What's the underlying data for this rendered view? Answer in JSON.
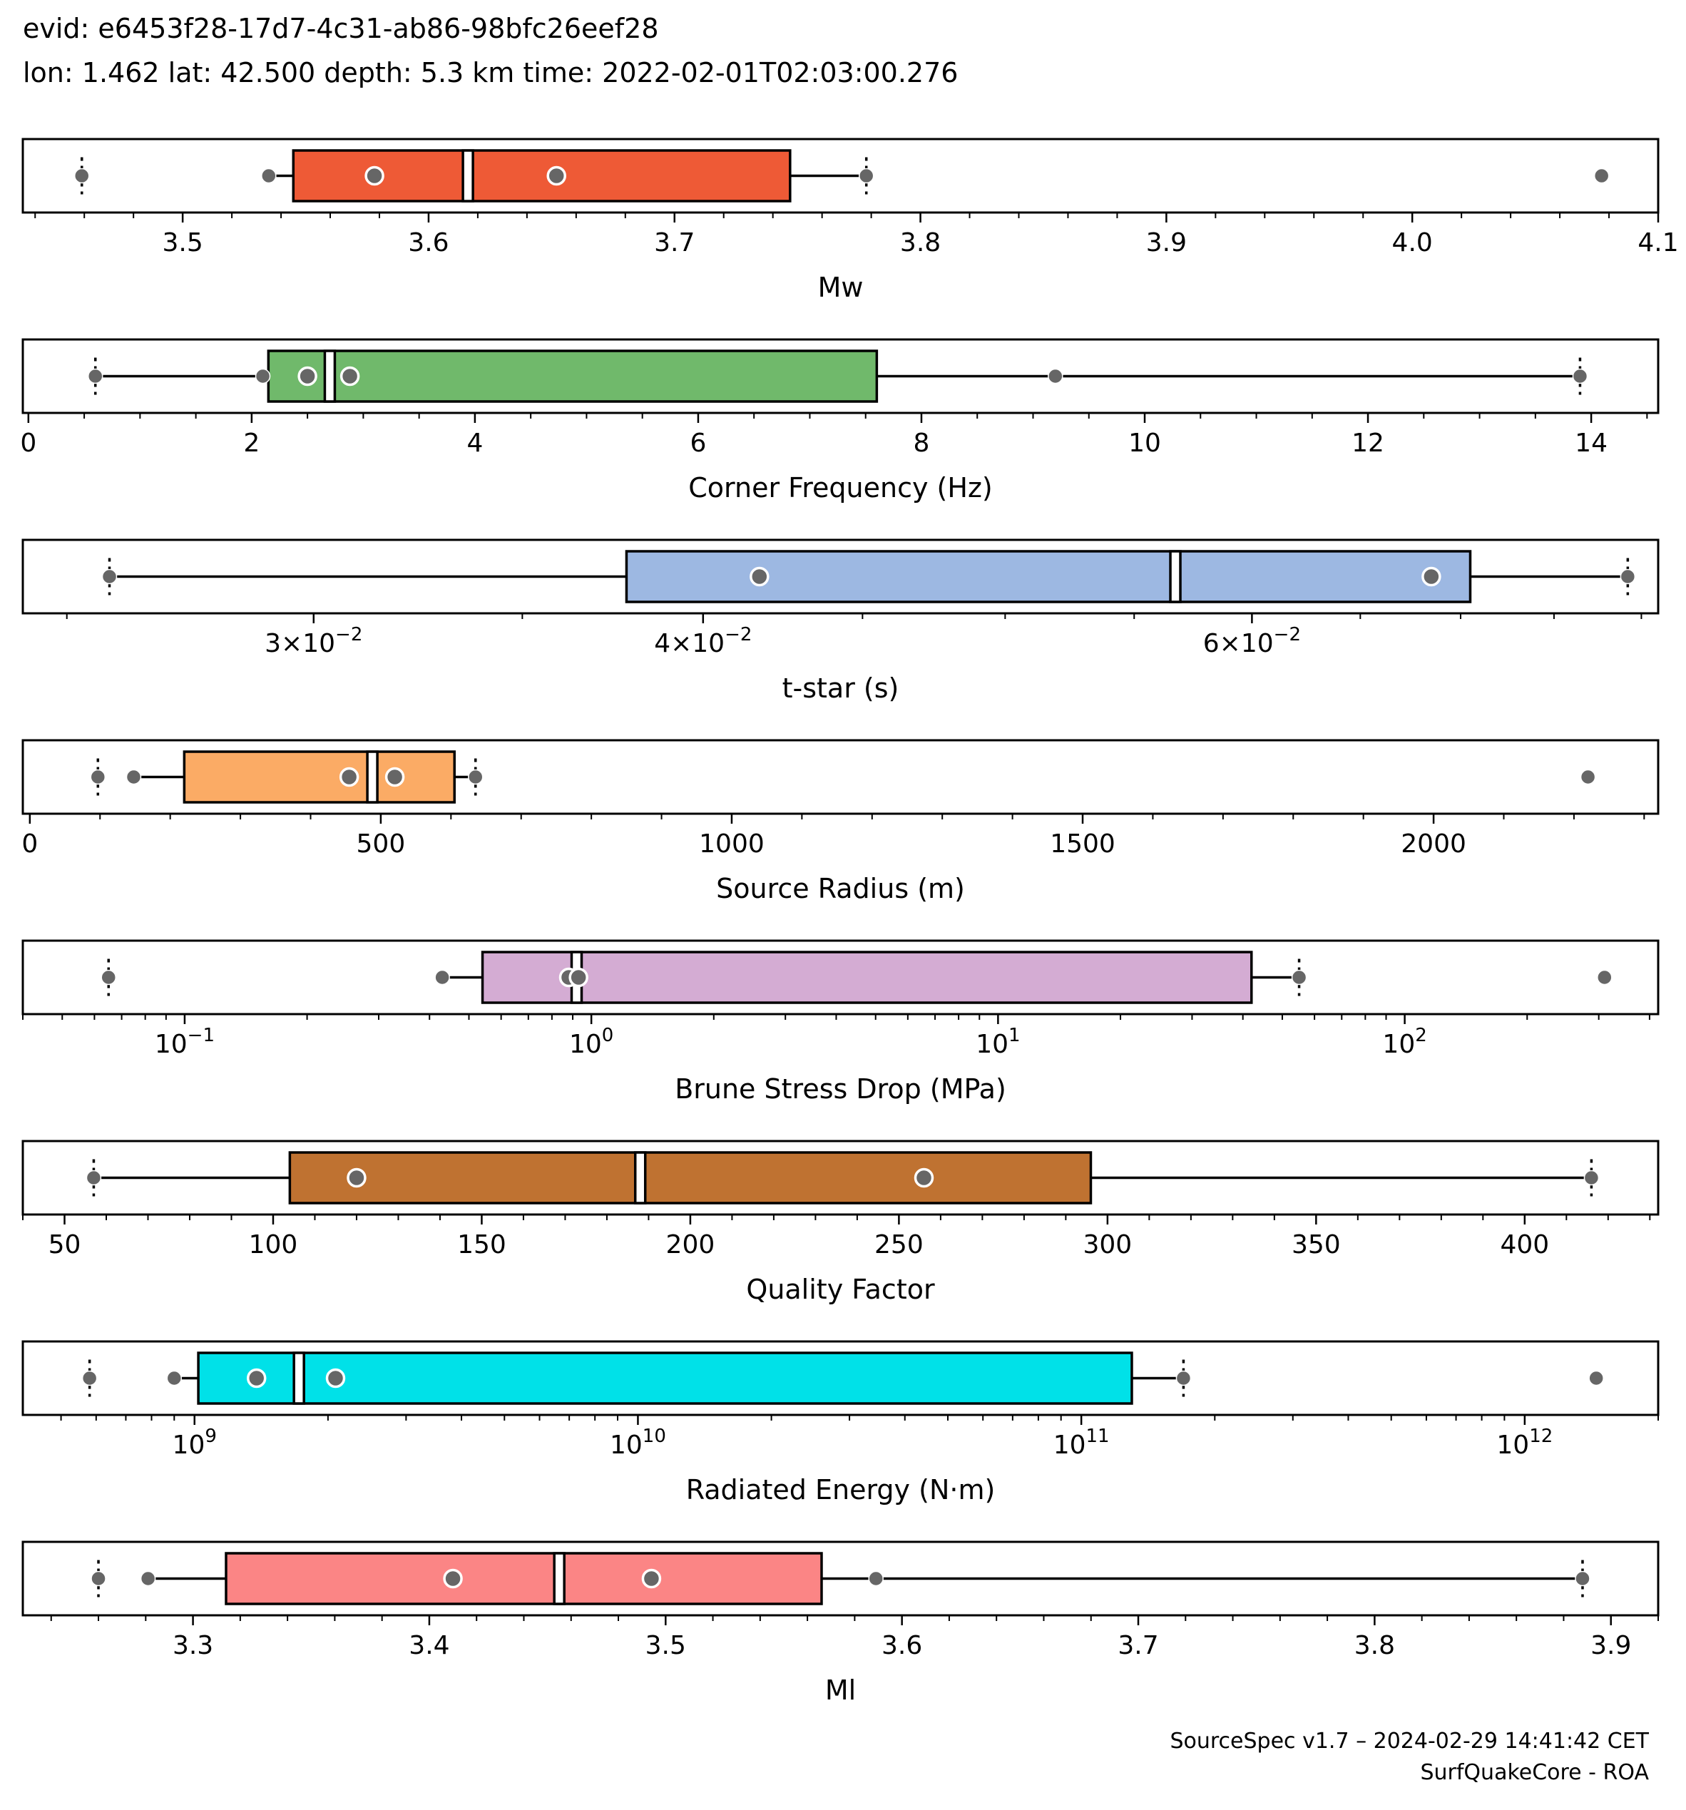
{
  "header": {
    "line1": "evid: e6453f28-17d7-4c31-ab86-98bfc26eef28",
    "line2": "lon: 1.462 lat: 42.500 depth: 5.3 km time: 2022-02-01T02:03:00.276"
  },
  "footer": {
    "line1": "SourceSpec v1.7 – 2024-02-29 14:41:42 CET",
    "line2": "SurfQuakeCore - ROA"
  },
  "chart_data": [
    {
      "type": "box",
      "xlabel": "Mw",
      "scale": "linear",
      "xlim": [
        3.435,
        4.1
      ],
      "ticks": [
        {
          "v": 3.5,
          "label": "3.5"
        },
        {
          "v": 3.6,
          "label": "3.6"
        },
        {
          "v": 3.7,
          "label": "3.7"
        },
        {
          "v": 3.8,
          "label": "3.8"
        },
        {
          "v": 3.9,
          "label": "3.9"
        },
        {
          "v": 4.0,
          "label": "4.0"
        },
        {
          "v": 4.1,
          "label": "4.1"
        }
      ],
      "minor_step": 0.02,
      "color": "#ee5a36",
      "box": {
        "q1": 3.545,
        "q3": 3.747,
        "median": 3.616
      },
      "whiskers": [
        3.535,
        3.778
      ],
      "range_markers": [
        3.459,
        3.778
      ],
      "outer_points": [
        3.459,
        3.535,
        3.778,
        4.077
      ],
      "inner_points": [
        3.578,
        3.652
      ]
    },
    {
      "type": "box",
      "xlabel": "Corner Frequency (Hz)",
      "scale": "linear",
      "xlim": [
        -0.05,
        14.6
      ],
      "ticks": [
        {
          "v": 0,
          "label": "0"
        },
        {
          "v": 2,
          "label": "2"
        },
        {
          "v": 4,
          "label": "4"
        },
        {
          "v": 6,
          "label": "6"
        },
        {
          "v": 8,
          "label": "8"
        },
        {
          "v": 10,
          "label": "10"
        },
        {
          "v": 12,
          "label": "12"
        },
        {
          "v": 14,
          "label": "14"
        }
      ],
      "minor_step": 0.5,
      "color": "#70b96b",
      "box": {
        "q1": 2.15,
        "q3": 7.6,
        "median": 2.7
      },
      "whiskers": [
        0.6,
        13.9
      ],
      "range_markers": [
        0.6,
        13.9
      ],
      "outer_points": [
        0.6,
        2.1,
        9.2,
        13.9
      ],
      "inner_points": [
        2.5,
        2.88
      ]
    },
    {
      "type": "box",
      "xlabel": "t-star (s)",
      "scale": "log",
      "xlim": [
        0.0242,
        0.081
      ],
      "ticks": [
        {
          "v": 0.03,
          "label": "3×10",
          "exp": "−2"
        },
        {
          "v": 0.04,
          "label": "4×10",
          "exp": "−2"
        },
        {
          "v": 0.06,
          "label": "6×10",
          "exp": "−2"
        }
      ],
      "minor_values": [
        0.025,
        0.035,
        0.045,
        0.05,
        0.055,
        0.065,
        0.07,
        0.075,
        0.08
      ],
      "color": "#9db8e2",
      "box": {
        "q1": 0.0378,
        "q3": 0.0705,
        "median": 0.0567
      },
      "whiskers": [
        0.0258,
        0.0792
      ],
      "range_markers": [
        0.0258,
        0.0792
      ],
      "outer_points": [
        0.0258,
        0.0792
      ],
      "inner_points": [
        0.0417,
        0.0685
      ]
    },
    {
      "type": "box",
      "xlabel": "Source Radius (m)",
      "scale": "linear",
      "xlim": [
        -10,
        2320
      ],
      "ticks": [
        {
          "v": 0,
          "label": "0"
        },
        {
          "v": 500,
          "label": "500"
        },
        {
          "v": 1000,
          "label": "1000"
        },
        {
          "v": 1500,
          "label": "1500"
        },
        {
          "v": 2000,
          "label": "2000"
        }
      ],
      "minor_step": 100,
      "color": "#fbab65",
      "box": {
        "q1": 220,
        "q3": 605,
        "median": 488
      },
      "whiskers": [
        148,
        635
      ],
      "range_markers": [
        97,
        635
      ],
      "outer_points": [
        97,
        148,
        635,
        2220
      ],
      "inner_points": [
        455,
        520
      ]
    },
    {
      "type": "box",
      "xlabel": "Brune Stress Drop (MPa)",
      "scale": "log",
      "xlim": [
        0.04,
        420
      ],
      "ticks": [
        {
          "v": 0.1,
          "label": "10",
          "exp": "−1"
        },
        {
          "v": 1,
          "label": "10",
          "exp": "0"
        },
        {
          "v": 10,
          "label": "10",
          "exp": "1"
        },
        {
          "v": 100,
          "label": "10",
          "exp": "2"
        }
      ],
      "minor_mode": "decade",
      "color": "#d4acd3",
      "box": {
        "q1": 0.54,
        "q3": 42,
        "median": 0.92
      },
      "whiskers": [
        0.43,
        55
      ],
      "range_markers": [
        0.065,
        55
      ],
      "outer_points": [
        0.065,
        0.43,
        55,
        310
      ],
      "inner_points": [
        0.88,
        0.93
      ]
    },
    {
      "type": "box",
      "xlabel": "Quality Factor",
      "scale": "linear",
      "xlim": [
        40,
        432
      ],
      "ticks": [
        {
          "v": 50,
          "label": "50"
        },
        {
          "v": 100,
          "label": "100"
        },
        {
          "v": 150,
          "label": "150"
        },
        {
          "v": 200,
          "label": "200"
        },
        {
          "v": 250,
          "label": "250"
        },
        {
          "v": 300,
          "label": "300"
        },
        {
          "v": 350,
          "label": "350"
        },
        {
          "v": 400,
          "label": "400"
        }
      ],
      "minor_step": 10,
      "color": "#bf7231",
      "box": {
        "q1": 104,
        "q3": 296,
        "median": 188
      },
      "whiskers": [
        57,
        416
      ],
      "range_markers": [
        57,
        416
      ],
      "outer_points": [
        57,
        416
      ],
      "inner_points": [
        120,
        256
      ]
    },
    {
      "type": "box",
      "xlabel": "Radiated Energy (N·m)",
      "scale": "log",
      "xlim": [
        410000000.0,
        2000000000000.0
      ],
      "ticks": [
        {
          "v": 1000000000.0,
          "label": "10",
          "exp": "9"
        },
        {
          "v": 10000000000.0,
          "label": "10",
          "exp": "10"
        },
        {
          "v": 100000000000.0,
          "label": "10",
          "exp": "11"
        },
        {
          "v": 1000000000000.0,
          "label": "10",
          "exp": "12"
        }
      ],
      "minor_mode": "decade",
      "color": "#00e1e8",
      "box": {
        "q1": 1020000000.0,
        "q3": 130000000000.0,
        "median": 1720000000.0
      },
      "whiskers": [
        900000000.0,
        170000000000.0
      ],
      "range_markers": [
        580000000.0,
        170000000000.0
      ],
      "outer_points": [
        580000000.0,
        900000000.0,
        170000000000.0,
        1450000000000.0
      ],
      "inner_points": [
        1380000000.0,
        2080000000.0
      ]
    },
    {
      "type": "box",
      "xlabel": "Ml",
      "scale": "linear",
      "xlim": [
        3.228,
        3.92
      ],
      "ticks": [
        {
          "v": 3.3,
          "label": "3.3"
        },
        {
          "v": 3.4,
          "label": "3.4"
        },
        {
          "v": 3.5,
          "label": "3.5"
        },
        {
          "v": 3.6,
          "label": "3.6"
        },
        {
          "v": 3.7,
          "label": "3.7"
        },
        {
          "v": 3.8,
          "label": "3.8"
        },
        {
          "v": 3.9,
          "label": "3.9"
        }
      ],
      "minor_step": 0.02,
      "color": "#fb8585",
      "box": {
        "q1": 3.314,
        "q3": 3.566,
        "median": 3.455
      },
      "whiskers": [
        3.281,
        3.888
      ],
      "range_markers": [
        3.26,
        3.888
      ],
      "outer_points": [
        3.26,
        3.281,
        3.589,
        3.888
      ],
      "inner_points": [
        3.41,
        3.494
      ]
    }
  ]
}
